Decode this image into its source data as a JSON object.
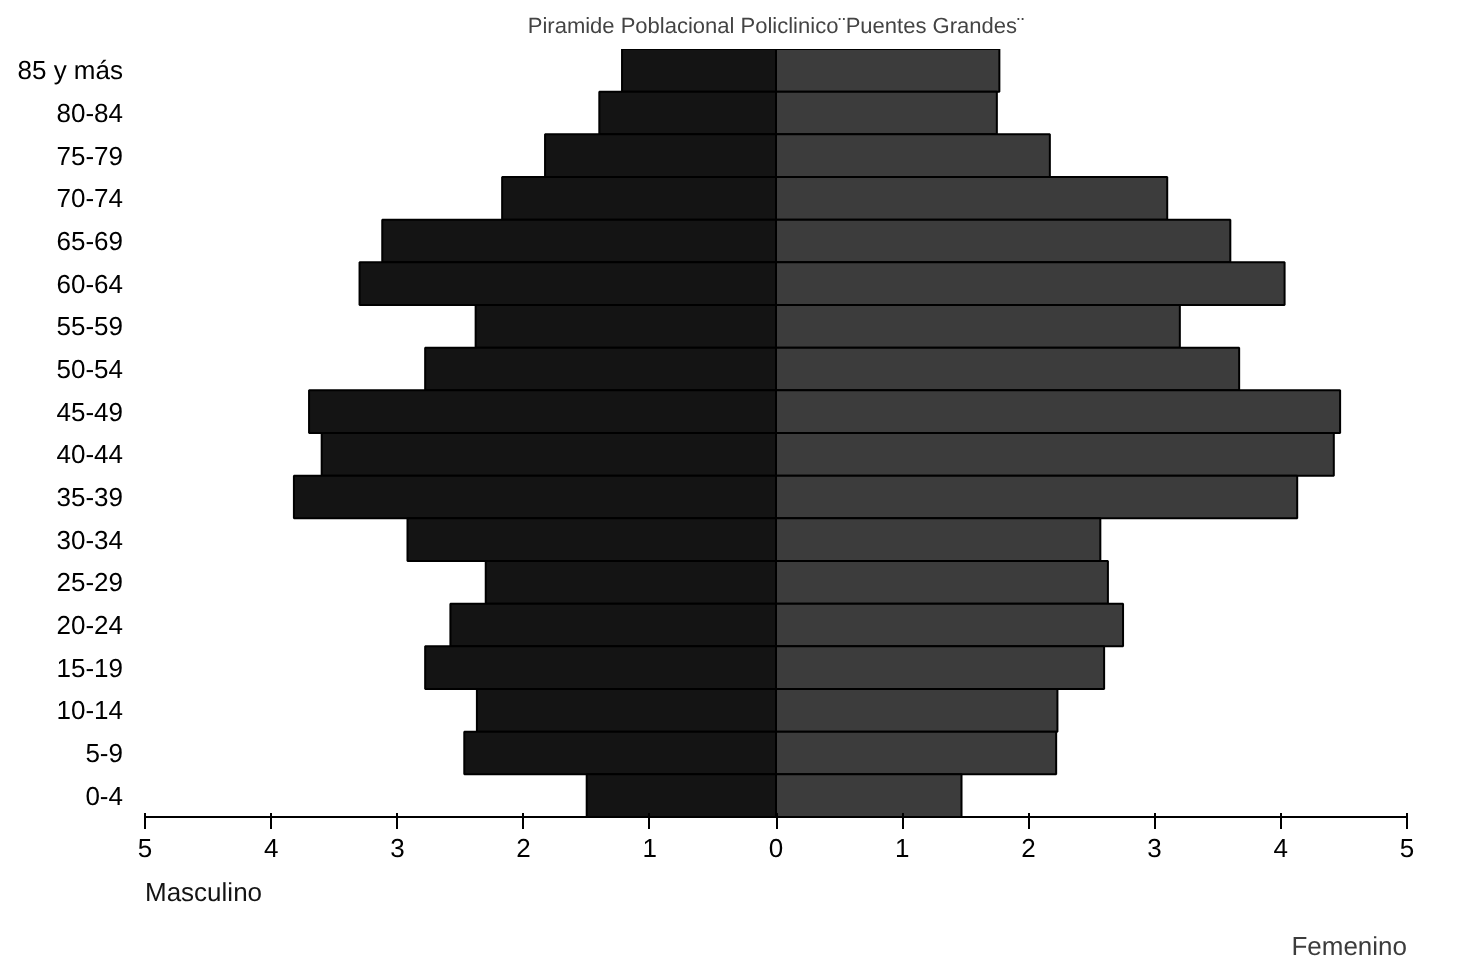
{
  "chart_data": {
    "type": "bar",
    "title": "Piramide Poblacional Policlinico¨Puentes Grandes¨",
    "orientation": "horizontal",
    "categories": [
      "85 y más",
      "80-84",
      "75-79",
      "70-74",
      "65-69",
      "60-64",
      "55-59",
      "50-54",
      "45-49",
      "40-44",
      "35-39",
      "30-34",
      "25-29",
      "20-24",
      "15-19",
      "10-14",
      "5-9",
      "0-4"
    ],
    "series": [
      {
        "name": "Masculino",
        "color": "#141414",
        "values": [
          -1.22,
          -1.4,
          -1.83,
          -2.17,
          -3.12,
          -3.3,
          -2.38,
          -2.78,
          -3.7,
          -3.6,
          -3.82,
          -2.92,
          -2.3,
          -2.58,
          -2.78,
          -2.37,
          -2.47,
          -1.5
        ]
      },
      {
        "name": "Femenino",
        "color": "#3c3c3c",
        "values": [
          1.77,
          1.75,
          2.17,
          3.1,
          3.6,
          4.03,
          3.2,
          3.67,
          4.47,
          4.42,
          4.13,
          2.57,
          2.63,
          2.75,
          2.6,
          2.23,
          2.22,
          1.47
        ]
      }
    ],
    "xlim": [
      -5,
      5
    ],
    "xticks": [
      {
        "value": -5,
        "label": "5"
      },
      {
        "value": -4,
        "label": "4"
      },
      {
        "value": -3,
        "label": "3"
      },
      {
        "value": -2,
        "label": "2"
      },
      {
        "value": -1,
        "label": "1"
      },
      0,
      1,
      2,
      3,
      4,
      5
    ],
    "grid": false,
    "stacked": true
  }
}
